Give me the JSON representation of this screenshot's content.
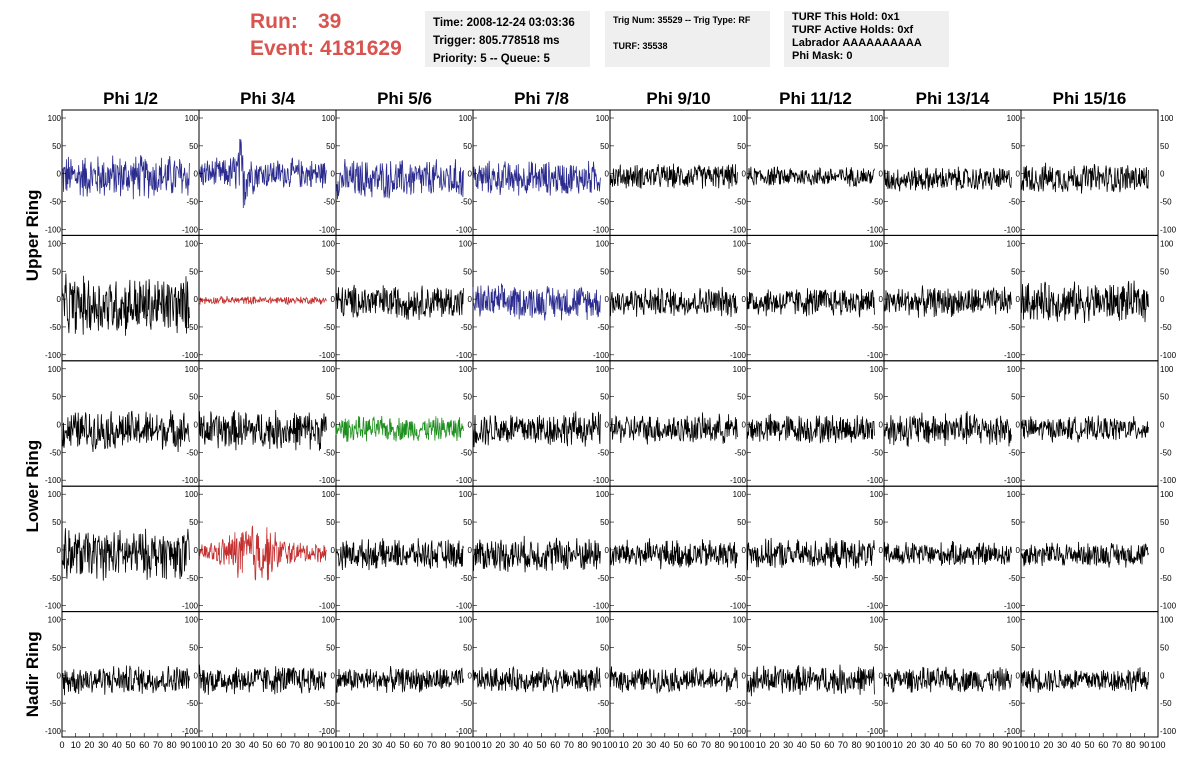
{
  "header": {
    "run_label": "Run:",
    "run_value": "39",
    "event_label": "Event:",
    "event_value": "4181629",
    "accent_color": "#d9534f"
  },
  "info_box_1": {
    "time": "Time: 2008-12-24 03:03:36",
    "trigger": "Trigger: 805.778518 ms",
    "priority": "Priority: 5 -- Queue: 5"
  },
  "info_box_2": {
    "trig": "Trig Num: 35529 -- Trig Type: RF",
    "turf": "TURF: 35538"
  },
  "info_box_3": {
    "hold": "TURF This Hold: 0x1",
    "active": "TURF Active Holds: 0xf",
    "labrador": "Labrador AAAAAAAAAA",
    "mask": "Phi Mask: 0"
  },
  "chart_data": {
    "type": "line",
    "columns": [
      "Phi 1/2",
      "Phi 3/4",
      "Phi 5/6",
      "Phi 7/8",
      "Phi 9/10",
      "Phi 11/12",
      "Phi 13/14",
      "Phi 15/16"
    ],
    "rows": [
      {
        "label": "Upper Ring",
        "span": 2
      },
      {
        "label": "Lower Ring",
        "span": 2
      },
      {
        "label": "Nadir Ring",
        "span": 1
      }
    ],
    "xlim": [
      0,
      100
    ],
    "ylim": [
      -100,
      100
    ],
    "y_ticks": [
      "100",
      "50",
      "0",
      "-50",
      "-100"
    ],
    "x_ticks": [
      "0",
      "10",
      "20",
      "30",
      "40",
      "50",
      "60",
      "70",
      "80",
      "90",
      "100"
    ],
    "trace_colors": {
      "normal": "#000000",
      "blue": "#2b2b8f",
      "red": "#c43030",
      "green": "#1e8f1e"
    },
    "cell_color_map": [
      [
        "blue",
        "blue",
        "blue",
        "blue",
        "normal",
        "normal",
        "normal",
        "normal"
      ],
      [
        "normal",
        "red",
        "normal",
        "blue",
        "normal",
        "normal",
        "normal",
        "normal"
      ],
      [
        "normal",
        "normal",
        "green",
        "normal",
        "normal",
        "normal",
        "normal",
        "normal"
      ],
      [
        "normal",
        "red",
        "normal",
        "normal",
        "normal",
        "normal",
        "normal",
        "normal"
      ],
      [
        "normal",
        "normal",
        "normal",
        "normal",
        "normal",
        "normal",
        "normal",
        "normal"
      ]
    ],
    "cell_offset": [
      [
        -5,
        0,
        -10,
        -8,
        -5,
        -5,
        -10,
        -8
      ],
      [
        -12,
        -2,
        -5,
        -5,
        -5,
        -5,
        -5,
        -5
      ],
      [
        -10,
        -10,
        -8,
        -8,
        -8,
        -8,
        -8,
        -8
      ],
      [
        -8,
        -5,
        -8,
        -8,
        -8,
        -8,
        -8,
        -8
      ],
      [
        -8,
        -8,
        -8,
        -8,
        -8,
        -8,
        -8,
        -8
      ]
    ],
    "cell_amplitude": [
      [
        45,
        60,
        40,
        35,
        25,
        20,
        25,
        30
      ],
      [
        60,
        8,
        35,
        35,
        30,
        30,
        30,
        40
      ],
      [
        40,
        40,
        25,
        35,
        30,
        30,
        35,
        25
      ],
      [
        50,
        50,
        30,
        35,
        30,
        30,
        25,
        25
      ],
      [
        30,
        30,
        25,
        25,
        25,
        30,
        25,
        25
      ]
    ]
  }
}
